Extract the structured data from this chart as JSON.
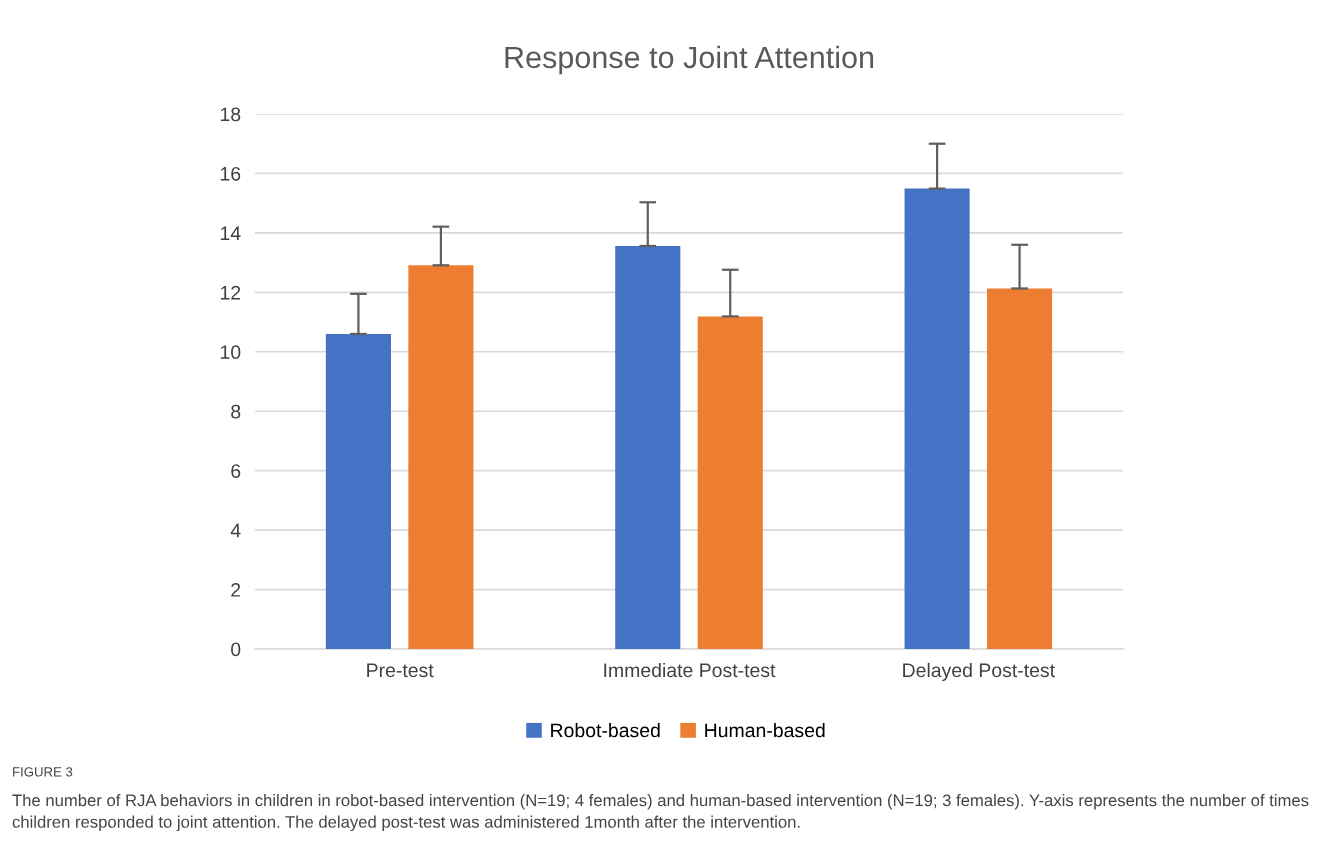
{
  "chart_data": {
    "type": "bar",
    "title": "Response to Joint Attention",
    "categories": [
      "Pre-test",
      "Immediate Post-test",
      "Delayed Post-test"
    ],
    "series": [
      {
        "name": "Robot-based",
        "color": "#4472c4",
        "values": [
          10.6,
          13.56,
          15.49
        ],
        "errors": [
          1.35,
          1.47,
          1.51
        ]
      },
      {
        "name": "Human-based",
        "color": "#ed7d31",
        "values": [
          12.91,
          11.19,
          12.13
        ],
        "errors": [
          1.3,
          1.57,
          1.47
        ]
      }
    ],
    "ylim": [
      0,
      18
    ],
    "yticks": [
      0,
      2,
      4,
      6,
      8,
      10,
      12,
      14,
      16,
      18
    ],
    "grid": "y",
    "legend": "bottom",
    "annotations": [
      "FIGURE 3",
      "The number of RJA behaviors in children in robot-based intervention (N=19; 4 females) and human-based intervention (N=19; 3 females). Y-axis represents the number of times children responded to joint attention. The delayed post-test was administered 1month after the intervention."
    ]
  }
}
